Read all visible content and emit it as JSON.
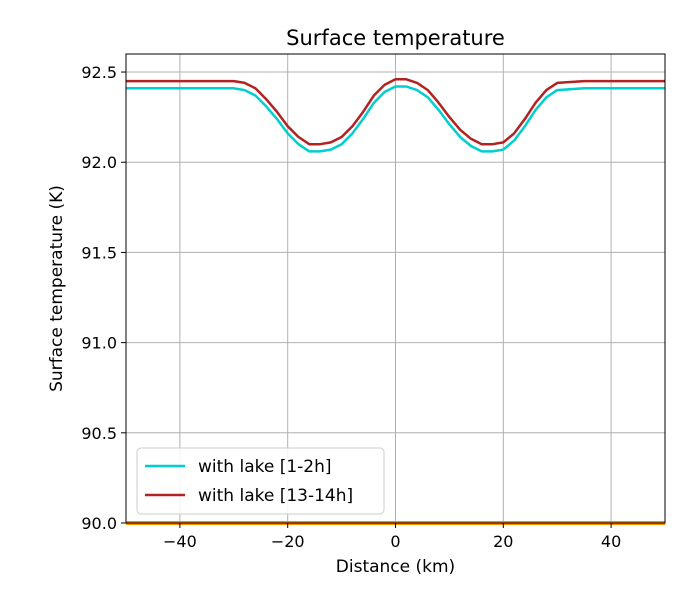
{
  "chart_data": {
    "type": "line",
    "title": "Surface temperature",
    "xlabel": "Distance (km)",
    "ylabel": "Surface temperature (K)",
    "xlim": [
      -50,
      50
    ],
    "ylim": [
      90.0,
      92.6
    ],
    "xticks": [
      -40,
      -20,
      0,
      20,
      40
    ],
    "xtick_labels": [
      "−40",
      "−20",
      "0",
      "20",
      "40"
    ],
    "yticks": [
      90.0,
      90.5,
      91.0,
      91.5,
      92.0,
      92.5
    ],
    "ytick_labels": [
      "90.0",
      "90.5",
      "91.0",
      "91.5",
      "92.0",
      "92.5"
    ],
    "grid": true,
    "legend_position": "lower-left",
    "series": [
      {
        "name": "with lake [1-2h]",
        "color": "#00CED1",
        "x": [
          -50,
          -45,
          -40,
          -35,
          -30,
          -28,
          -26,
          -24,
          -22,
          -20,
          -18,
          -16,
          -14,
          -12,
          -10,
          -8,
          -6,
          -4,
          -2,
          0,
          2,
          4,
          6,
          8,
          10,
          12,
          14,
          16,
          18,
          20,
          22,
          24,
          26,
          28,
          30,
          35,
          40,
          45,
          50
        ],
        "values": [
          92.41,
          92.41,
          92.41,
          92.41,
          92.41,
          92.4,
          92.37,
          92.31,
          92.24,
          92.16,
          92.1,
          92.06,
          92.06,
          92.07,
          92.1,
          92.16,
          92.24,
          92.33,
          92.39,
          92.42,
          92.42,
          92.4,
          92.36,
          92.29,
          92.21,
          92.14,
          92.09,
          92.06,
          92.06,
          92.07,
          92.12,
          92.2,
          92.29,
          92.36,
          92.4,
          92.41,
          92.41,
          92.41,
          92.41
        ]
      },
      {
        "name": "with lake [13-14h]",
        "color": "#B22222",
        "x": [
          -50,
          -45,
          -40,
          -35,
          -30,
          -28,
          -26,
          -24,
          -22,
          -20,
          -18,
          -16,
          -14,
          -12,
          -10,
          -8,
          -6,
          -4,
          -2,
          0,
          2,
          4,
          6,
          8,
          10,
          12,
          14,
          16,
          18,
          20,
          22,
          24,
          26,
          28,
          30,
          35,
          40,
          45,
          50
        ],
        "values": [
          92.45,
          92.45,
          92.45,
          92.45,
          92.45,
          92.44,
          92.41,
          92.35,
          92.28,
          92.2,
          92.14,
          92.1,
          92.1,
          92.11,
          92.14,
          92.2,
          92.28,
          92.37,
          92.43,
          92.46,
          92.46,
          92.44,
          92.4,
          92.33,
          92.25,
          92.18,
          92.13,
          92.1,
          92.1,
          92.11,
          92.16,
          92.24,
          92.33,
          92.4,
          92.44,
          92.45,
          92.45,
          92.45,
          92.45
        ]
      },
      {
        "color": "#FF8C00",
        "x": [
          -50,
          50
        ],
        "values": [
          90.0,
          90.0
        ]
      }
    ]
  }
}
